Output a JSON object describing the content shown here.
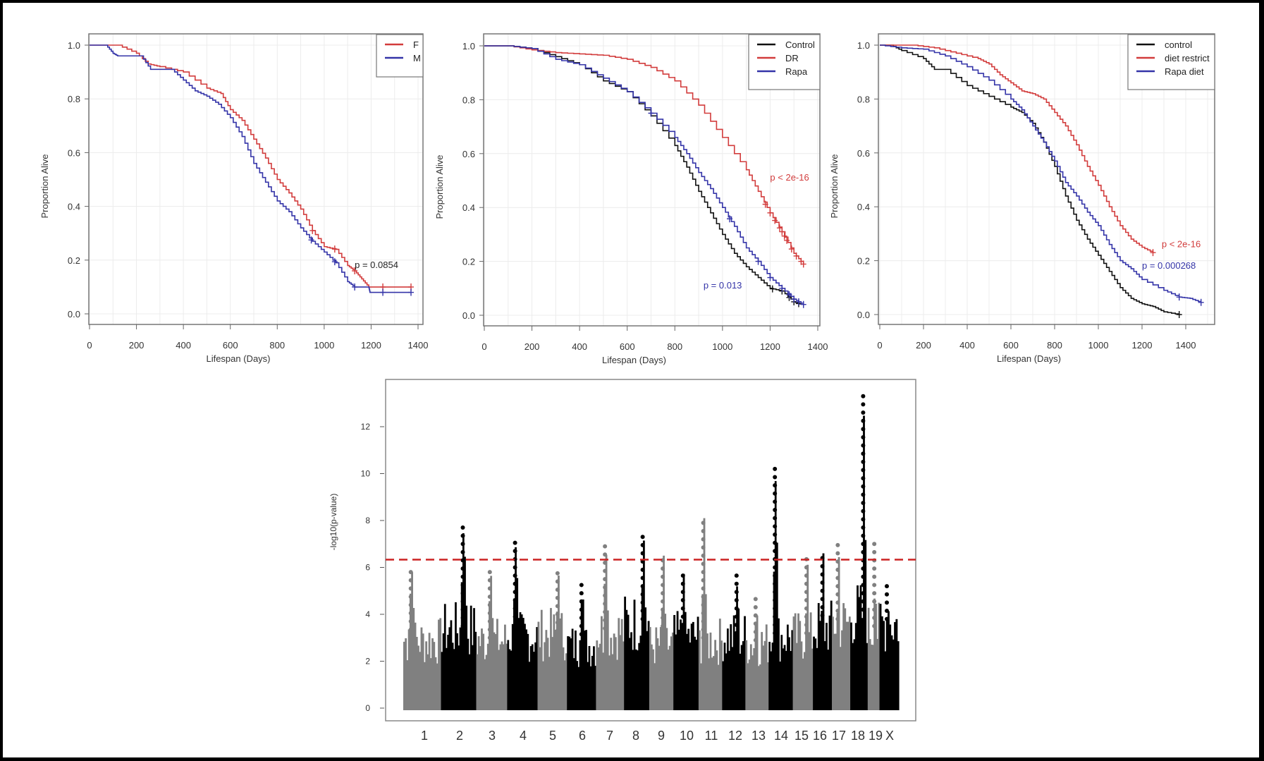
{
  "chart_data": [
    {
      "type": "line",
      "subtype": "kaplan-meier",
      "title": "",
      "xlabel": "Lifespan (Days)",
      "ylabel": "Proportion Alive",
      "xlim": [
        0,
        1400
      ],
      "ylim": [
        0.0,
        1.0
      ],
      "xticks": [
        0,
        200,
        400,
        600,
        800,
        1000,
        1200,
        1400
      ],
      "yticks": [
        "0.0",
        "0.2",
        "0.4",
        "0.6",
        "0.8",
        "1.0"
      ],
      "grid": true,
      "legend_position": "top-right",
      "annotations": [
        {
          "text": "p = 0.0854",
          "color": "#222222",
          "x": 1130,
          "y": 0.17
        }
      ],
      "series": [
        {
          "name": "F",
          "color": "#d23c3c",
          "x": [
            0,
            120,
            200,
            250,
            300,
            400,
            500,
            560,
            600,
            650,
            700,
            750,
            800,
            850,
            900,
            950,
            1000,
            1050,
            1100,
            1130,
            1160,
            1190,
            1370
          ],
          "y": [
            1,
            1,
            0.97,
            0.93,
            0.92,
            0.9,
            0.84,
            0.82,
            0.76,
            0.72,
            0.65,
            0.58,
            0.5,
            0.45,
            0.39,
            0.31,
            0.25,
            0.24,
            0.18,
            0.16,
            0.13,
            0.1,
            0.1
          ],
          "censor_x": [
            950,
            1045,
            1130,
            1250,
            1370
          ]
        },
        {
          "name": "M",
          "color": "#3434a8",
          "x": [
            0,
            70,
            100,
            120,
            220,
            260,
            350,
            400,
            450,
            500,
            550,
            600,
            650,
            700,
            750,
            800,
            850,
            900,
            950,
            1000,
            1050,
            1100,
            1130,
            1190,
            1195,
            1370
          ],
          "y": [
            1,
            1,
            0.97,
            0.96,
            0.96,
            0.91,
            0.91,
            0.87,
            0.83,
            0.81,
            0.78,
            0.73,
            0.66,
            0.56,
            0.49,
            0.42,
            0.38,
            0.32,
            0.27,
            0.23,
            0.19,
            0.12,
            0.1,
            0.1,
            0.08,
            0.08
          ],
          "censor_x": [
            945,
            1045,
            1130,
            1250,
            1370
          ]
        }
      ]
    },
    {
      "type": "line",
      "subtype": "kaplan-meier",
      "title": "",
      "xlabel": "Lifespan (Days)",
      "ylabel": "Proportion Alive",
      "xlim": [
        0,
        1400
      ],
      "ylim": [
        0.0,
        1.0
      ],
      "xticks": [
        0,
        200,
        400,
        600,
        800,
        1000,
        1200,
        1400
      ],
      "yticks": [
        "0.0",
        "0.2",
        "0.4",
        "0.6",
        "0.8",
        "1.0"
      ],
      "grid": true,
      "legend_position": "top-right",
      "annotations": [
        {
          "text": "p < 2e-16",
          "color": "#d23c3c",
          "x": 1200,
          "y": 0.5
        },
        {
          "text": "p = 0.013",
          "color": "#3434a8",
          "x": 920,
          "y": 0.1
        }
      ],
      "series": [
        {
          "name": "Control",
          "color": "#111111",
          "x": [
            0,
            100,
            200,
            300,
            400,
            500,
            600,
            700,
            800,
            850,
            900,
            950,
            1000,
            1050,
            1100,
            1150,
            1200,
            1250,
            1300,
            1330
          ],
          "y": [
            1,
            1,
            0.99,
            0.96,
            0.93,
            0.87,
            0.83,
            0.74,
            0.63,
            0.55,
            0.46,
            0.38,
            0.3,
            0.23,
            0.18,
            0.14,
            0.1,
            0.09,
            0.05,
            0.04
          ],
          "censor_x": [
            1210,
            1250,
            1280,
            1300,
            1320
          ]
        },
        {
          "name": "DR",
          "color": "#d23c3c",
          "x": [
            0,
            100,
            200,
            300,
            400,
            500,
            600,
            700,
            800,
            900,
            1000,
            1100,
            1150,
            1200,
            1250,
            1300,
            1340
          ],
          "y": [
            1,
            1,
            0.985,
            0.975,
            0.97,
            0.965,
            0.95,
            0.92,
            0.87,
            0.78,
            0.66,
            0.54,
            0.46,
            0.38,
            0.31,
            0.23,
            0.19
          ],
          "censor_x": [
            1180,
            1200,
            1220,
            1240,
            1250,
            1260,
            1270,
            1290,
            1310,
            1330,
            1340
          ]
        },
        {
          "name": "Rapa",
          "color": "#3434a8",
          "x": [
            0,
            100,
            200,
            300,
            400,
            500,
            600,
            700,
            800,
            850,
            900,
            950,
            1000,
            1050,
            1100,
            1150,
            1200,
            1250,
            1300,
            1340
          ],
          "y": [
            1,
            1,
            0.99,
            0.95,
            0.93,
            0.88,
            0.83,
            0.75,
            0.66,
            0.6,
            0.53,
            0.47,
            0.4,
            0.33,
            0.25,
            0.2,
            0.14,
            0.1,
            0.06,
            0.04
          ],
          "censor_x": [
            700,
            1030,
            1150,
            1200,
            1250,
            1280,
            1300,
            1320,
            1340
          ]
        }
      ]
    },
    {
      "type": "line",
      "subtype": "kaplan-meier",
      "title": "",
      "xlabel": "Lifespan (Days)",
      "ylabel": "Proportion Alive",
      "xlim": [
        0,
        1530
      ],
      "ylim": [
        0.0,
        1.0
      ],
      "xticks": [
        0,
        200,
        400,
        600,
        800,
        1000,
        1200,
        1400
      ],
      "yticks": [
        "0.0",
        "0.2",
        "0.4",
        "0.6",
        "0.8",
        "1.0"
      ],
      "grid": true,
      "legend_position": "top-right",
      "annotations": [
        {
          "text": "p < 2e-16",
          "color": "#d23c3c",
          "x": 1290,
          "y": 0.25
        },
        {
          "text": "p = 0.000268",
          "color": "#3434a8",
          "x": 1200,
          "y": 0.17
        }
      ],
      "series": [
        {
          "name": "control",
          "color": "#111111",
          "x": [
            0,
            50,
            100,
            200,
            250,
            300,
            400,
            500,
            600,
            650,
            700,
            750,
            800,
            850,
            900,
            950,
            1000,
            1050,
            1100,
            1150,
            1200,
            1250,
            1300,
            1370
          ],
          "y": [
            1,
            1,
            0.98,
            0.95,
            0.91,
            0.91,
            0.85,
            0.81,
            0.77,
            0.75,
            0.71,
            0.64,
            0.55,
            0.44,
            0.35,
            0.28,
            0.22,
            0.16,
            0.1,
            0.06,
            0.04,
            0.03,
            0.01,
            0.0
          ],
          "censor_x": [
            1370
          ]
        },
        {
          "name": "diet restrict",
          "color": "#d23c3c",
          "x": [
            0,
            150,
            250,
            350,
            450,
            500,
            550,
            600,
            650,
            700,
            750,
            800,
            850,
            900,
            950,
            1000,
            1050,
            1100,
            1150,
            1200,
            1250
          ],
          "y": [
            1,
            1,
            0.99,
            0.97,
            0.95,
            0.93,
            0.89,
            0.86,
            0.83,
            0.82,
            0.8,
            0.75,
            0.7,
            0.63,
            0.55,
            0.48,
            0.4,
            0.33,
            0.28,
            0.25,
            0.23
          ],
          "censor_x": [
            1250
          ]
        },
        {
          "name": "Rapa diet",
          "color": "#3434a8",
          "x": [
            0,
            100,
            200,
            300,
            400,
            500,
            600,
            650,
            700,
            750,
            800,
            850,
            900,
            950,
            1000,
            1050,
            1100,
            1150,
            1200,
            1300,
            1370,
            1420,
            1470
          ],
          "y": [
            1,
            0.99,
            0.985,
            0.96,
            0.92,
            0.87,
            0.8,
            0.76,
            0.7,
            0.64,
            0.57,
            0.49,
            0.44,
            0.38,
            0.33,
            0.26,
            0.2,
            0.17,
            0.13,
            0.09,
            0.065,
            0.06,
            0.045
          ],
          "censor_x": [
            1370,
            1470
          ]
        }
      ]
    },
    {
      "type": "scatter",
      "subtype": "manhattan",
      "title": "",
      "xlabel": "",
      "ylabel": "-log10(p-value)",
      "ylim": [
        -0.5,
        14
      ],
      "yticks": [
        0,
        2,
        4,
        6,
        8,
        10,
        12
      ],
      "grid": false,
      "threshold": {
        "value": 6.33,
        "color": "#cc2222",
        "style": "dashed"
      },
      "colors": {
        "odd": "#808080",
        "even": "#000000"
      },
      "categories": [
        "1",
        "2",
        "3",
        "4",
        "5",
        "6",
        "7",
        "8",
        "9",
        "10",
        "11",
        "12",
        "13",
        "14",
        "15",
        "16",
        "17",
        "18",
        "19",
        "X"
      ],
      "chrom_relative_length": [
        1.95,
        1.82,
        1.6,
        1.57,
        1.52,
        1.5,
        1.45,
        1.3,
        1.25,
        1.3,
        1.22,
        1.2,
        1.2,
        1.25,
        1.04,
        0.98,
        0.95,
        0.9,
        0.61,
        1.0
      ],
      "peak_values": [
        6.1,
        8.0,
        6.0,
        7.3,
        5.8,
        5.5,
        7.1,
        7.6,
        6.6,
        5.9,
        8.1,
        5.9,
        4.7,
        10.3,
        6.6,
        6.6,
        7.0,
        13.5,
        7.3,
        5.3
      ],
      "typical_values": [
        3.0,
        3.5,
        3.0,
        3.2,
        3.3,
        2.8,
        3.4,
        3.8,
        2.8,
        3.2,
        3.0,
        3.2,
        2.9,
        3.2,
        3.2,
        3.6,
        3.8,
        4.2,
        3.5,
        3.8
      ]
    }
  ]
}
